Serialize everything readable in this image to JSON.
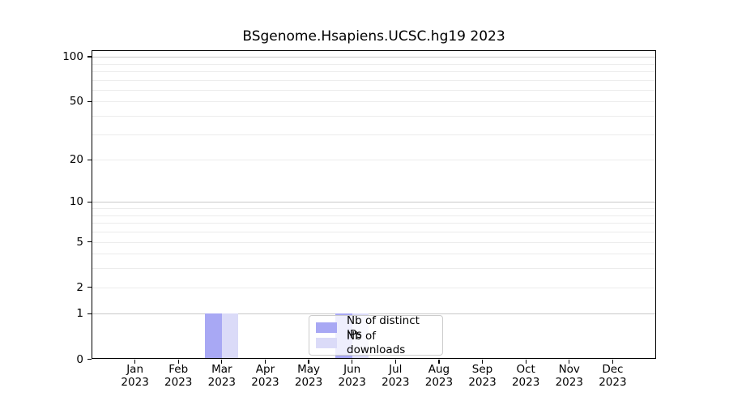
{
  "title": "BSgenome.Hsapiens.UCSC.hg19 2023",
  "chart_data": {
    "type": "bar",
    "title": "BSgenome.Hsapiens.UCSC.hg19 2023",
    "x_months": [
      "Jan",
      "Feb",
      "Mar",
      "Apr",
      "May",
      "Jun",
      "Jul",
      "Aug",
      "Sep",
      "Oct",
      "Nov",
      "Dec"
    ],
    "x_year": "2023",
    "series": [
      {
        "name": "Nb of distinct IPs",
        "color": "#a8a8f4",
        "values": [
          0,
          0,
          1,
          0,
          0,
          1,
          0,
          0,
          0,
          0,
          0,
          0
        ]
      },
      {
        "name": "Nb of downloads",
        "color": "#dbdbf8",
        "values": [
          0,
          0,
          1,
          0,
          0,
          1,
          0,
          0,
          0,
          0,
          0,
          0
        ]
      }
    ],
    "y_ticks": [
      "0",
      "1",
      "2",
      "5",
      "10",
      "20",
      "50",
      "100"
    ],
    "y_tick_values": [
      0,
      1,
      2,
      5,
      10,
      20,
      50,
      100
    ],
    "y_gridlines_major": [
      1,
      10,
      100
    ],
    "y_gridlines_minor": [
      2,
      3,
      4,
      5,
      6,
      7,
      8,
      9,
      20,
      30,
      40,
      50,
      60,
      70,
      80,
      90
    ],
    "y_scale": "log10(1+v)",
    "ylim": [
      0,
      110
    ],
    "grid": true,
    "legend_position": "inside-bottom-center",
    "colors": {
      "grid_major": "#c9c9c9",
      "grid_minor": "#ececec",
      "axis": "#000000",
      "background": "#ffffff"
    }
  }
}
